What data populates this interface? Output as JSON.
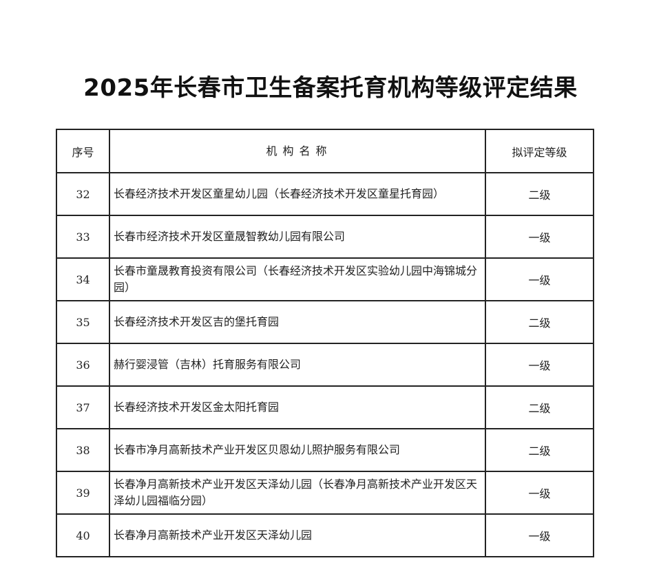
{
  "title": "2025年长春市卫生备案托育机构等级评定结果",
  "table": {
    "headers": [
      "序号",
      "机构名称",
      "拟评定等级"
    ],
    "rows": [
      {
        "no": "32",
        "name": "长春经济技术开发区童星幼儿园（长春经济技术开发区童星托育园）",
        "level": "二级"
      },
      {
        "no": "33",
        "name": "长春市经济技术开发区童晟智教幼儿园有限公司",
        "level": "一级"
      },
      {
        "no": "34",
        "name": "长春市童晟教育投资有限公司（长春经济技术开发区实验幼儿园中海锦城分园）",
        "level": "一级"
      },
      {
        "no": "35",
        "name": "长春经济技术开发区吉的堡托育园",
        "level": "二级"
      },
      {
        "no": "36",
        "name": "赫行婴浸管（吉林）托育服务有限公司",
        "level": "一级"
      },
      {
        "no": "37",
        "name": "长春经济技术开发区金太阳托育园",
        "level": "二级"
      },
      {
        "no": "38",
        "name": "长春市净月高新技术产业开发区贝恩幼儿照护服务有限公司",
        "level": "二级"
      },
      {
        "no": "39",
        "name": "长春净月高新技术产业开发区天泽幼儿园（长春净月高新技术产业开发区天泽幼儿园福临分园）",
        "level": "一级"
      },
      {
        "no": "40",
        "name": "长春净月高新技术产业开发区天泽幼儿园",
        "level": "一级"
      }
    ]
  }
}
